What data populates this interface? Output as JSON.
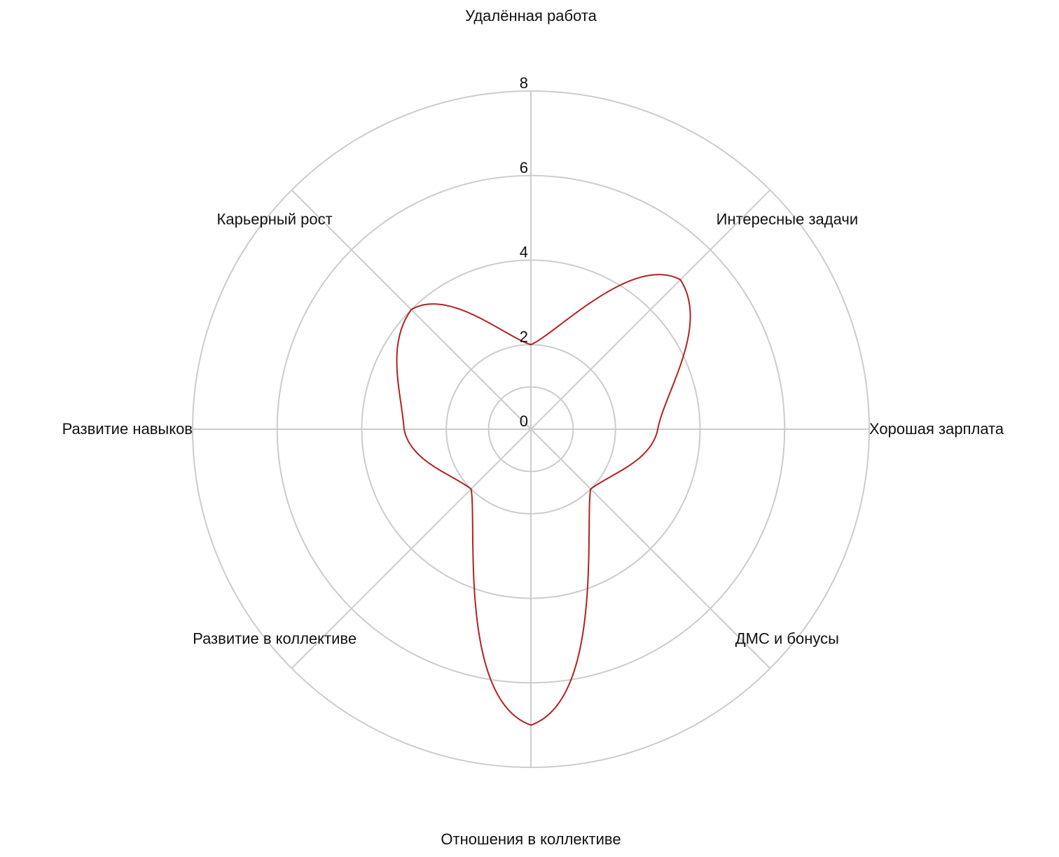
{
  "chart_data": {
    "type": "radar",
    "title": "",
    "r_range": [
      0,
      8
    ],
    "r_ticks": [
      0,
      2,
      4,
      6,
      8
    ],
    "categories": [
      "Удалённая работа",
      "Интересные задачи",
      "Хорошая зарплата",
      "ДМС и бонусы",
      "Отношения в коллективе",
      "Развитие в коллективе",
      "Развитие навыков",
      "Карьерный рост"
    ],
    "series": [
      {
        "name": "",
        "color": "#b22222",
        "values": [
          2,
          5,
          3,
          2,
          7,
          2,
          3,
          4
        ],
        "curve": "smooth-petal"
      }
    ],
    "grid": true,
    "legend": "none"
  }
}
